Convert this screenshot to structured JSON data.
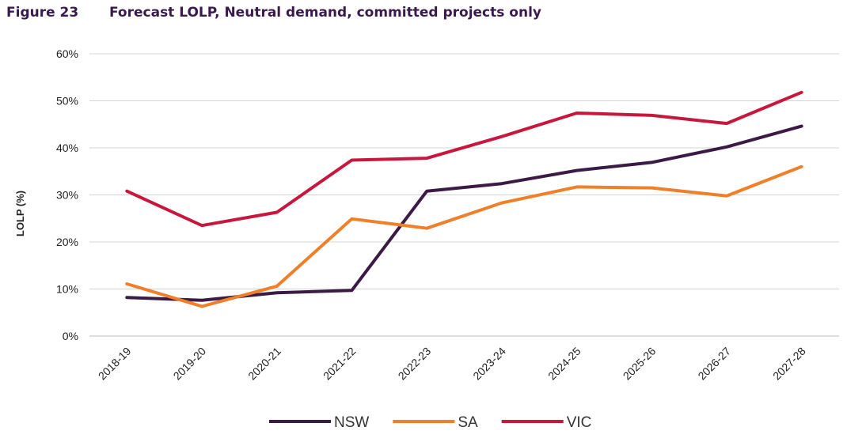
{
  "figure": {
    "number": "Figure 23",
    "title": "Forecast LOLP, Neutral demand, committed projects only"
  },
  "chart_data": {
    "type": "line",
    "title": "Forecast LOLP, Neutral demand, committed projects only",
    "xlabel": "",
    "ylabel": "LOLP (%)",
    "ylim": [
      0,
      60
    ],
    "y_ticks": [
      0,
      10,
      20,
      30,
      40,
      50,
      60
    ],
    "y_tick_format": "%",
    "grid": "horizontal",
    "legend_position": "bottom-center",
    "categories": [
      "2018-19",
      "2019-20",
      "2020-21",
      "2021-22",
      "2022-23",
      "2023-24",
      "2024-25",
      "2025-26",
      "2026-27",
      "2027-28"
    ],
    "series": [
      {
        "name": "NSW",
        "color": "#3b1a45",
        "values": [
          8.2,
          7.6,
          9.2,
          9.7,
          30.8,
          32.4,
          35.2,
          36.9,
          40.2,
          44.6
        ]
      },
      {
        "name": "SA",
        "color": "#f07f2a",
        "values": [
          11.1,
          6.3,
          10.6,
          24.9,
          22.9,
          28.3,
          31.7,
          31.5,
          29.8,
          36.0
        ]
      },
      {
        "name": "VIC",
        "color": "#c8173d",
        "values": [
          30.8,
          23.5,
          26.3,
          37.4,
          37.8,
          42.4,
          47.4,
          46.9,
          45.2,
          51.8
        ]
      }
    ]
  }
}
